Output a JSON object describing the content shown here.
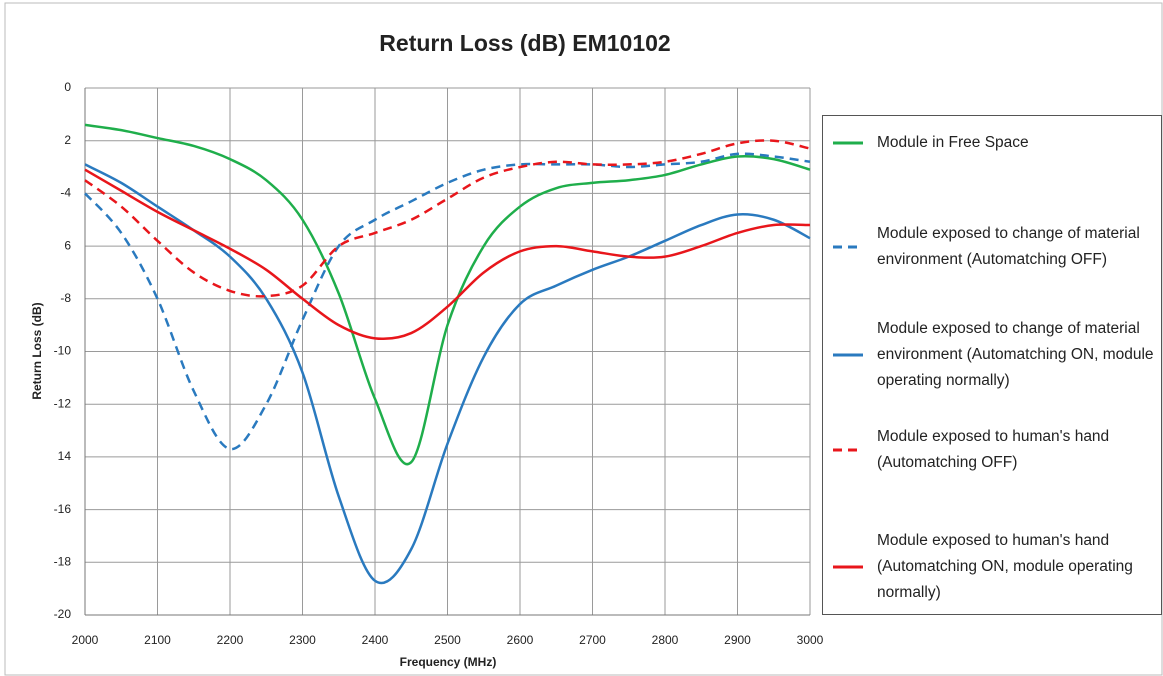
{
  "chart_data": {
    "type": "line",
    "title": "Return Loss (dB) EM10102",
    "xlabel": "Frequency (MHz)",
    "ylabel": "Return Loss (dB)",
    "x": [
      2000,
      2050,
      2100,
      2150,
      2200,
      2250,
      2300,
      2350,
      2400,
      2450,
      2500,
      2550,
      2600,
      2650,
      2700,
      2750,
      2800,
      2850,
      2900,
      2950,
      3000
    ],
    "xlim": [
      2000,
      3000
    ],
    "xticks": [
      2000,
      2100,
      2200,
      2300,
      2400,
      2500,
      2600,
      2700,
      2800,
      2900,
      3000
    ],
    "ylim": [
      -20,
      0
    ],
    "yticks": [
      0,
      {
        "value": -2,
        "label": "2"
      },
      -4,
      {
        "value": -6,
        "label": "6"
      },
      -8,
      -10,
      -12,
      {
        "value": -14,
        "label": "14"
      },
      -16,
      -18,
      -20
    ],
    "grid": true,
    "legend": "right",
    "series": [
      {
        "name": "Module in Free Space",
        "color": "#1fae4b",
        "line_style": "solid",
        "values": [
          -1.4,
          -1.6,
          -1.9,
          -2.2,
          -2.7,
          -3.5,
          -5.0,
          -7.8,
          -11.8,
          -14.2,
          -9.0,
          -6.0,
          -4.5,
          -3.8,
          -3.6,
          -3.5,
          -3.3,
          -2.9,
          -2.6,
          -2.7,
          -3.1
        ]
      },
      {
        "name": "Module exposed to change of material environment (Automatching OFF)",
        "color": "#2a7abf",
        "line_style": "dashed",
        "values": [
          -4.0,
          -5.5,
          -8.0,
          -11.5,
          -13.7,
          -12.0,
          -8.8,
          -6.0,
          -5.0,
          -4.3,
          -3.6,
          -3.1,
          -2.9,
          -2.9,
          -2.9,
          -3.0,
          -2.9,
          -2.8,
          -2.5,
          -2.6,
          -2.8
        ]
      },
      {
        "name": "Module exposed to change of material environment (Automatching ON, module operating normally)",
        "color": "#2a7abf",
        "line_style": "solid",
        "values": [
          -2.9,
          -3.6,
          -4.5,
          -5.4,
          -6.4,
          -8.0,
          -10.8,
          -15.5,
          -18.7,
          -17.5,
          -13.5,
          -10.2,
          -8.2,
          -7.5,
          -6.9,
          -6.4,
          -5.8,
          -5.2,
          -4.8,
          -5.0,
          -5.7
        ]
      },
      {
        "name": "Module exposed to human's hand (Automatching OFF)",
        "color": "#e8161b",
        "line_style": "dashed",
        "values": [
          -3.5,
          -4.5,
          -5.8,
          -7.0,
          -7.7,
          -7.9,
          -7.5,
          -6.0,
          -5.5,
          -5.0,
          -4.2,
          -3.4,
          -3.0,
          -2.8,
          -2.9,
          -2.9,
          -2.8,
          -2.5,
          -2.1,
          -2.0,
          -2.3
        ]
      },
      {
        "name": "Module exposed to human's hand (Automatching ON, module operating normally)",
        "color": "#e8161b",
        "line_style": "solid",
        "values": [
          -3.1,
          -3.9,
          -4.7,
          -5.4,
          -6.1,
          -6.9,
          -8.0,
          -9.0,
          -9.5,
          -9.3,
          -8.3,
          -7.0,
          -6.2,
          -6.0,
          -6.2,
          -6.4,
          -6.4,
          -6.0,
          -5.5,
          -5.2,
          -5.2
        ]
      }
    ]
  }
}
